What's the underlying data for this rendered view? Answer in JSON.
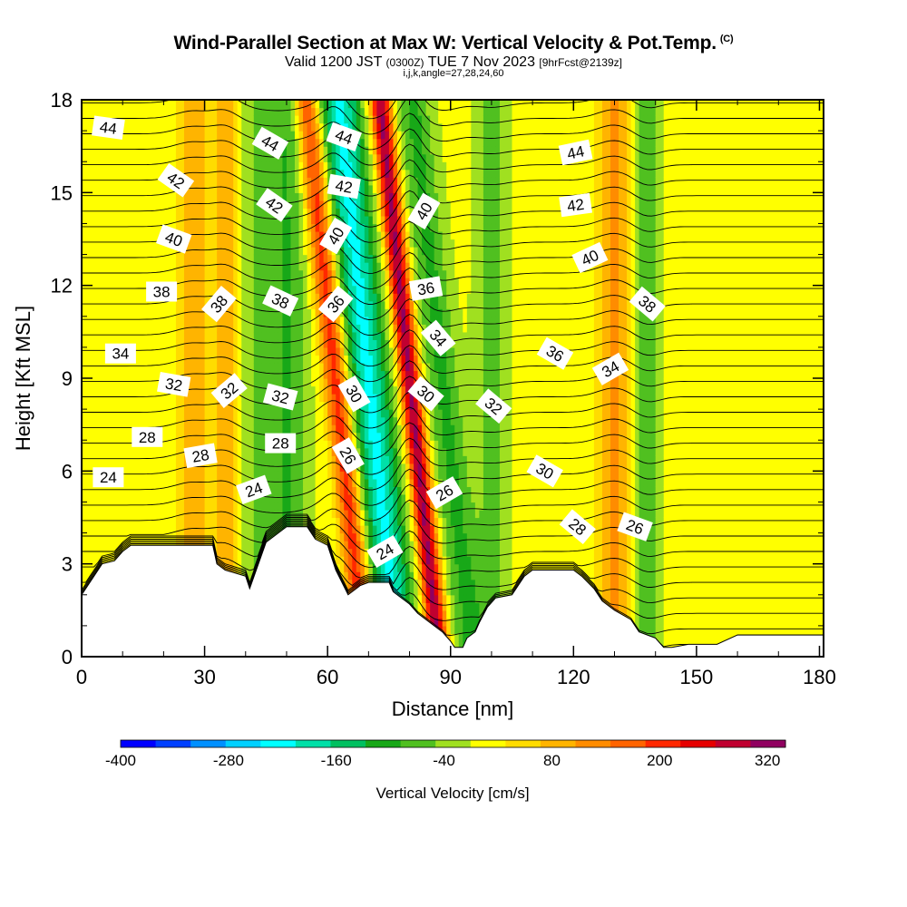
{
  "figure": {
    "title": "Wind-Parallel Section at Max W: Vertical Velocity & Pot.Temp.",
    "title_mark": "(C)",
    "subtitle_main": "Valid 1200 JST",
    "subtitle_small": "(0300Z)",
    "subtitle_date": "TUE 7 Nov 2023",
    "subtitle_fcst": "[9hrFcst@2139z]",
    "params": "i,j,k,angle=27,28,24,60"
  },
  "colorbar": {
    "label": "Vertical Velocity [cm/s]",
    "tick_labels": [
      "-400",
      "-280",
      "-160",
      "-40",
      "80",
      "200",
      "320"
    ],
    "min": -400,
    "max": 340,
    "step": 40,
    "colors": [
      "#0000ff",
      "#0040ff",
      "#0090ff",
      "#00d0ff",
      "#00ffff",
      "#00e0a8",
      "#00c060",
      "#18a818",
      "#50c020",
      "#a0e020",
      "#ffff00",
      "#ffdc00",
      "#ffb400",
      "#ff8c00",
      "#ff6400",
      "#ff2800",
      "#e60000",
      "#c00030",
      "#900060"
    ]
  },
  "chart_data": {
    "type": "heatmap",
    "title": "Wind-Parallel Section at Max W: Vertical Velocity & Pot.Temp.",
    "xlabel": "Distance [nm]",
    "ylabel": "Height [Kft MSL]",
    "xlim": [
      0,
      181
    ],
    "ylim": [
      0,
      18
    ],
    "x_ticks": [
      0,
      30,
      60,
      90,
      120,
      150,
      180
    ],
    "y_ticks": [
      0,
      3,
      6,
      9,
      12,
      15,
      18
    ],
    "grid": false,
    "vertical_velocity_columns": [
      {
        "x": 27,
        "width": 4,
        "w": 100
      },
      {
        "x": 35,
        "width": 3,
        "w": 110
      },
      {
        "x": 43,
        "width": 4,
        "w": -50
      },
      {
        "x": 50,
        "width": 5,
        "w": -90
      },
      {
        "x": 62,
        "width": 3,
        "w": 220
      },
      {
        "x": 70,
        "width": 5,
        "w": -220
      },
      {
        "x": 80,
        "width": 2.5,
        "w": 320
      },
      {
        "x": 88,
        "width": 4,
        "w": -100
      },
      {
        "x": 100,
        "width": 4,
        "w": -60
      },
      {
        "x": 130,
        "width": 4,
        "w": 120
      },
      {
        "x": 138,
        "width": 3,
        "w": -80
      }
    ],
    "terrain_profile": {
      "x": [
        0,
        3,
        5,
        8,
        10,
        12,
        14,
        20,
        25,
        32,
        33,
        35,
        40,
        41,
        45,
        50,
        55,
        57,
        60,
        62,
        65,
        67,
        68,
        70,
        75,
        76,
        80,
        82,
        85,
        88,
        90,
        91,
        93,
        94,
        96,
        97,
        99,
        101,
        105,
        108,
        110,
        115,
        120,
        122,
        125,
        127,
        130,
        134,
        136,
        140,
        142,
        144,
        148,
        155,
        160,
        170,
        181
      ],
      "height": [
        2.0,
        2.6,
        3.0,
        3.1,
        3.4,
        3.6,
        3.6,
        3.6,
        3.6,
        3.6,
        3.0,
        2.8,
        2.6,
        2.2,
        3.7,
        4.2,
        4.2,
        3.8,
        3.6,
        2.8,
        2.0,
        2.2,
        2.3,
        2.4,
        2.4,
        2.1,
        1.7,
        1.4,
        1.1,
        0.8,
        0.5,
        0.3,
        0.3,
        0.6,
        0.8,
        1.1,
        1.6,
        1.9,
        2.0,
        2.6,
        2.8,
        2.8,
        2.8,
        2.6,
        2.2,
        1.8,
        1.5,
        1.2,
        0.8,
        0.6,
        0.3,
        0.3,
        0.4,
        0.4,
        0.7,
        0.7,
        0.7
      ]
    },
    "potential_temperature_labels": [
      {
        "text": "44",
        "x": 6.5,
        "y": 17.1,
        "angle": 8
      },
      {
        "text": "44",
        "x": 46,
        "y": 16.6,
        "angle": 30
      },
      {
        "text": "44",
        "x": 64,
        "y": 16.8,
        "angle": 20
      },
      {
        "text": "44",
        "x": 120.5,
        "y": 16.3,
        "angle": -12
      },
      {
        "text": "42",
        "x": 23,
        "y": 15.4,
        "angle": 35
      },
      {
        "text": "42",
        "x": 47,
        "y": 14.6,
        "angle": 35
      },
      {
        "text": "42",
        "x": 64,
        "y": 15.2,
        "angle": 10
      },
      {
        "text": "42",
        "x": 120.5,
        "y": 14.6,
        "angle": -8
      },
      {
        "text": "40",
        "x": 22.5,
        "y": 13.5,
        "angle": 20
      },
      {
        "text": "40",
        "x": 62,
        "y": 13.6,
        "angle": -60
      },
      {
        "text": "40",
        "x": 83.5,
        "y": 14.4,
        "angle": -60
      },
      {
        "text": "40",
        "x": 124,
        "y": 12.9,
        "angle": -25
      },
      {
        "text": "38",
        "x": 19.5,
        "y": 11.8,
        "angle": 0
      },
      {
        "text": "38",
        "x": 33.5,
        "y": 11.4,
        "angle": -50
      },
      {
        "text": "38",
        "x": 48.5,
        "y": 11.5,
        "angle": 25
      },
      {
        "text": "38",
        "x": 138,
        "y": 11.4,
        "angle": 40
      },
      {
        "text": "36",
        "x": 62,
        "y": 11.4,
        "angle": -50
      },
      {
        "text": "36",
        "x": 84,
        "y": 11.9,
        "angle": -10
      },
      {
        "text": "36",
        "x": 115.5,
        "y": 9.8,
        "angle": 30
      },
      {
        "text": "34",
        "x": 9.5,
        "y": 9.8,
        "angle": 0
      },
      {
        "text": "34",
        "x": 87,
        "y": 10.3,
        "angle": 50
      },
      {
        "text": "34",
        "x": 129,
        "y": 9.3,
        "angle": -30
      },
      {
        "text": "32",
        "x": 22.5,
        "y": 8.8,
        "angle": 10
      },
      {
        "text": "32",
        "x": 36,
        "y": 8.6,
        "angle": -40
      },
      {
        "text": "32",
        "x": 48.5,
        "y": 8.4,
        "angle": 15
      },
      {
        "text": "32",
        "x": 100.5,
        "y": 8.1,
        "angle": 40
      },
      {
        "text": "30",
        "x": 66.5,
        "y": 8.5,
        "angle": 60
      },
      {
        "text": "30",
        "x": 84,
        "y": 8.5,
        "angle": 40
      },
      {
        "text": "30",
        "x": 113,
        "y": 6.0,
        "angle": 30
      },
      {
        "text": "28",
        "x": 16,
        "y": 7.1,
        "angle": 0
      },
      {
        "text": "28",
        "x": 29,
        "y": 6.5,
        "angle": -10
      },
      {
        "text": "28",
        "x": 48.5,
        "y": 6.9,
        "angle": 0
      },
      {
        "text": "28",
        "x": 121,
        "y": 4.2,
        "angle": 40
      },
      {
        "text": "26",
        "x": 65,
        "y": 6.5,
        "angle": 60
      },
      {
        "text": "26",
        "x": 88.5,
        "y": 5.3,
        "angle": -30
      },
      {
        "text": "26",
        "x": 135,
        "y": 4.2,
        "angle": 20
      },
      {
        "text": "24",
        "x": 6.5,
        "y": 5.8,
        "angle": 0
      },
      {
        "text": "24",
        "x": 42,
        "y": 5.4,
        "angle": -20
      },
      {
        "text": "24",
        "x": 74,
        "y": 3.4,
        "angle": -30
      }
    ]
  }
}
